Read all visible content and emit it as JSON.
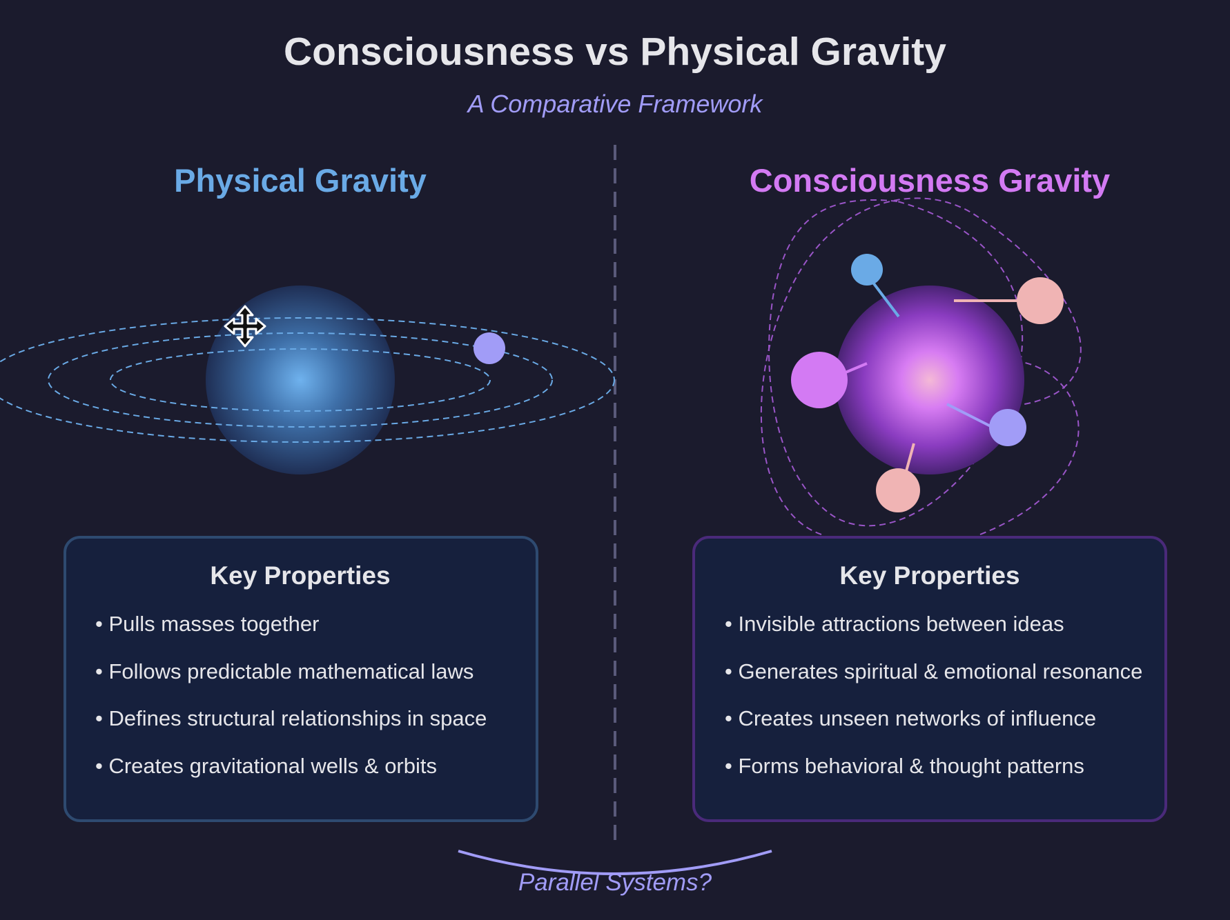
{
  "title": "Consciousness vs Physical Gravity",
  "subtitle": "A Comparative Framework",
  "left": {
    "title": "Physical Gravity",
    "box_title": "Key Properties",
    "bullets": [
      "• Pulls masses together",
      "• Follows predictable mathematical laws",
      "• Defines structural relationships in space",
      "• Creates gravitational wells & orbits"
    ]
  },
  "right": {
    "title": "Consciousness Gravity",
    "box_title": "Key Properties",
    "bullets": [
      "• Invisible attractions between ideas",
      "• Generates spiritual & emotional resonance",
      "• Creates unseen networks of influence",
      "• Forms behavioral & thought patterns"
    ]
  },
  "footer": "Parallel Systems?",
  "colors": {
    "background": "#1b1b2d",
    "physical_accent": "#6aaae6",
    "consciousness_accent": "#d37af3",
    "periwinkle": "#a19cf7",
    "pink": "#f0b4b4",
    "text": "#e6e6ea"
  },
  "icons": {
    "cursor": "move-cursor-icon"
  }
}
